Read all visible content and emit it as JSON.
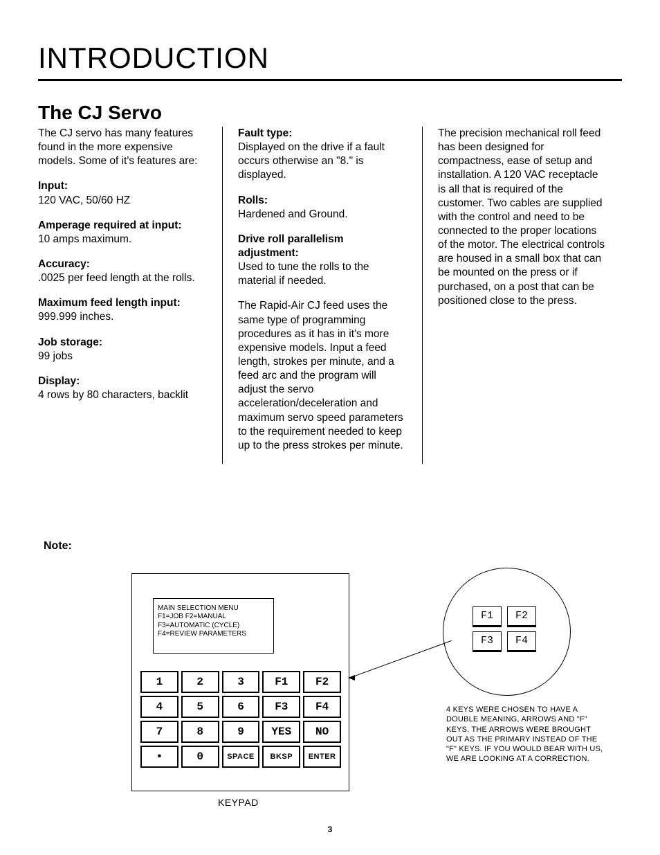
{
  "title": "INTRODUCTION",
  "section_title": "The CJ Servo",
  "col1": {
    "intro": "The CJ servo has many features found in the more expensive models. Some of it's features are:",
    "specs": [
      {
        "label": "Input:",
        "value": "120 VAC, 50/60 HZ"
      },
      {
        "label": "Amperage required at input:",
        "value": "10 amps maximum."
      },
      {
        "label": "Accuracy:",
        "value": ".0025 per feed length at the rolls."
      },
      {
        "label": "Maximum feed length input:",
        "value": "999.999 inches."
      },
      {
        "label": "Job storage:",
        "value": "99 jobs"
      },
      {
        "label": "Display:",
        "value": "4 rows by 80 characters, backlit"
      }
    ]
  },
  "col2": {
    "specs": [
      {
        "label": "Fault type:",
        "value": "Displayed on the drive if a fault occurs otherwise an \"8.\" is displayed."
      },
      {
        "label": "Rolls:",
        "value": "Hardened and Ground."
      },
      {
        "label": "Drive roll parallelism adjustment:",
        "value": "Used to tune the rolls to the material if needed."
      }
    ],
    "para": "The Rapid-Air CJ feed uses the same type of programming procedures as it has in it's more expensive models. Input a feed length, strokes per minute, and a feed arc and the program will adjust the servo acceleration/deceleration and maximum servo speed parameters to the requirement needed to keep up to the press strokes per minute."
  },
  "col3": {
    "para": "The precision mechanical roll feed has been designed for compactness, ease of setup and installation. A 120 VAC receptacle is all that is required of the customer. Two cables are supplied with the control and need to be connected to the proper locations of the motor. The electrical controls are housed in a small box that can be mounted on the press or if purchased, on a post that can be positioned close to the press."
  },
  "note_label": "Note:",
  "display_lines": [
    "MAIN SELECTION  MENU",
    "F1=JOB  F2=MANUAL",
    "F3=AUTOMATIC (CYCLE)",
    "F4=REVIEW PARAMETERS"
  ],
  "keys": [
    "1",
    "2",
    "3",
    "F1",
    "F2",
    "4",
    "5",
    "6",
    "F3",
    "F4",
    "7",
    "8",
    "9",
    "YES",
    "NO",
    "•",
    "0",
    "SPACE",
    "BKSP",
    "ENTER"
  ],
  "keypad_caption": "KEYPAD",
  "callout_keys": [
    "F1",
    "F2",
    "F3",
    "F4"
  ],
  "callout_arrows": [
    "↑",
    "→",
    "←",
    "→"
  ],
  "callout_text": "4 KEYS WERE CHOSEN TO HAVE A DOUBLE MEANING, ARROWS AND \"F\" KEYS. THE ARROWS WERE BROUGHT OUT AS THE PRIMARY INSTEAD OF THE \"F\" KEYS. IF YOU WOULD BEAR WITH US, WE ARE LOOKING AT A CORRECTION.",
  "page_number": "3"
}
